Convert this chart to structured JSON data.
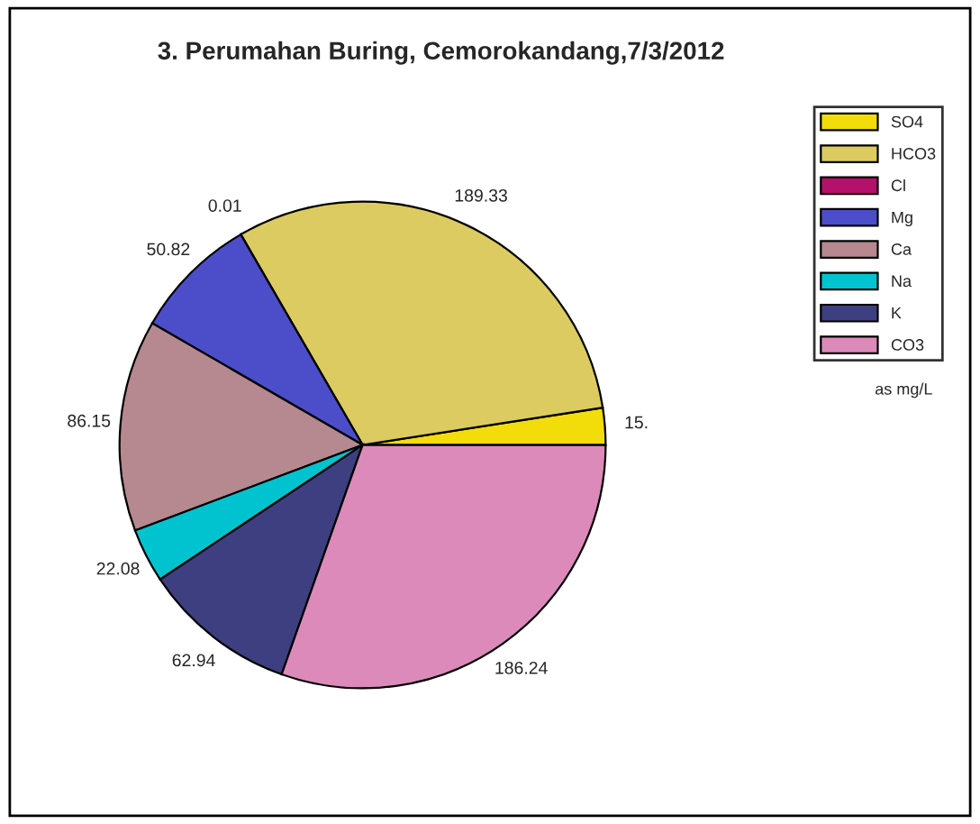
{
  "chart_data": {
    "type": "pie",
    "title": "3. Perumahan Buring, Cemorokandang,7/3/2012",
    "categories": [
      "SO4",
      "HCO3",
      "Cl",
      "Mg",
      "Ca",
      "Na",
      "K",
      "CO3"
    ],
    "values": [
      15,
      189.33,
      0.01,
      50.82,
      86.15,
      22.08,
      62.94,
      186.24
    ],
    "value_labels": [
      "15.",
      "189.33",
      "0.01",
      "50.82",
      "86.15",
      "22.08",
      "62.94",
      "186.24"
    ],
    "colors": [
      "#f2dc0a",
      "#dccb60",
      "#b5106a",
      "#4c4ec9",
      "#b68890",
      "#00c3d0",
      "#3e3f80",
      "#dc8aba"
    ],
    "legend": "top right",
    "annotations": [
      "as mg/L"
    ]
  }
}
